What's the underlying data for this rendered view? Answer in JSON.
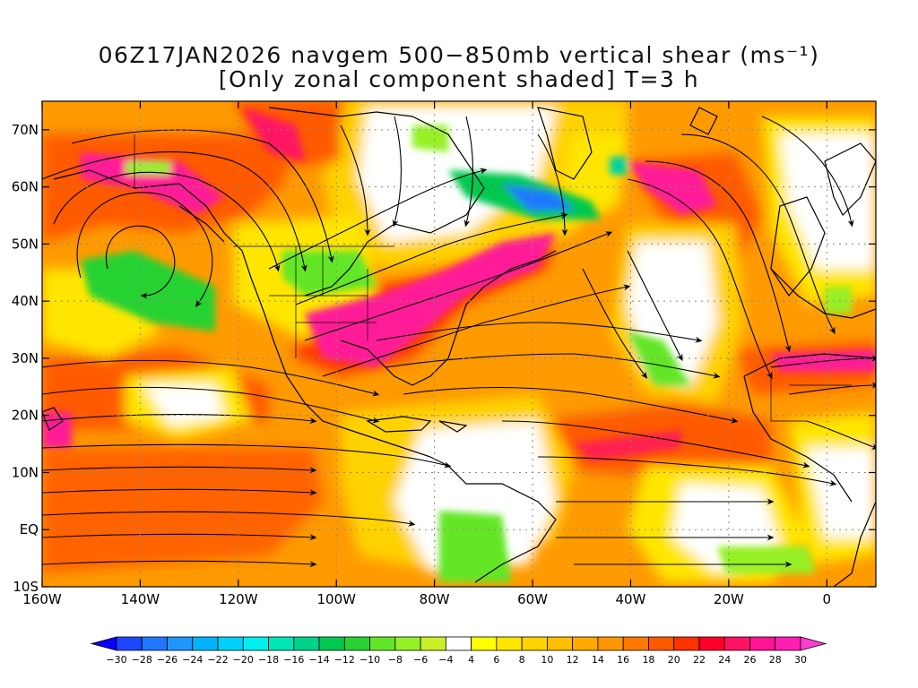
{
  "title": {
    "line1": "06Z17JAN2026 navgem 500−850mb vertical shear (ms⁻¹)",
    "line2": "[Only zonal component shaded] T=3 h"
  },
  "map": {
    "lon_range": [
      -160,
      10
    ],
    "lat_range": [
      -10,
      75
    ],
    "lat_ticks": [
      {
        "value": 70,
        "label": "70N"
      },
      {
        "value": 60,
        "label": "60N"
      },
      {
        "value": 50,
        "label": "50N"
      },
      {
        "value": 40,
        "label": "40N"
      },
      {
        "value": 30,
        "label": "30N"
      },
      {
        "value": 20,
        "label": "20N"
      },
      {
        "value": 10,
        "label": "10N"
      },
      {
        "value": 0,
        "label": "EQ"
      },
      {
        "value": -10,
        "label": "10S"
      }
    ],
    "lon_ticks": [
      {
        "value": -160,
        "label": "160W"
      },
      {
        "value": -140,
        "label": "140W"
      },
      {
        "value": -120,
        "label": "120W"
      },
      {
        "value": -100,
        "label": "100W"
      },
      {
        "value": -80,
        "label": "80W"
      },
      {
        "value": -60,
        "label": "60W"
      },
      {
        "value": -40,
        "label": "40W"
      },
      {
        "value": -20,
        "label": "20W"
      },
      {
        "value": 0,
        "label": "0"
      }
    ],
    "grid": "dotted"
  },
  "colorbar": {
    "levels": [
      "-30",
      "-28",
      "-26",
      "-24",
      "-22",
      "-20",
      "-18",
      "-16",
      "-14",
      "-12",
      "-10",
      "-8",
      "-6",
      "-4",
      "4",
      "6",
      "8",
      "10",
      "12",
      "14",
      "16",
      "18",
      "20",
      "22",
      "24",
      "26",
      "28",
      "30"
    ],
    "colors": [
      "#0a00ff",
      "#1e46ff",
      "#1e78ff",
      "#1e96ff",
      "#00b4ff",
      "#00d2ff",
      "#00f0f0",
      "#00e6b4",
      "#00d28c",
      "#00c850",
      "#28d232",
      "#64e628",
      "#96f028",
      "#c8f028",
      "#ffffff",
      "#ffff00",
      "#ffe600",
      "#ffd200",
      "#ffbe00",
      "#ffaa00",
      "#ff9600",
      "#ff7800",
      "#ff5a00",
      "#ff3200",
      "#ff0028",
      "#ff1464",
      "#ff1496",
      "#ff1eb4",
      "#ff3cd2"
    ]
  }
}
